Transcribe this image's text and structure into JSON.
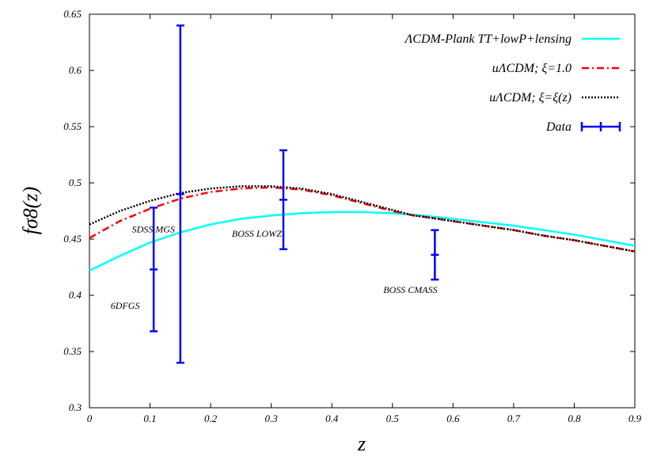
{
  "chart_data": {
    "type": "line",
    "xlabel": "z",
    "ylabel": "fσ8(z)",
    "xlim": [
      0,
      0.9
    ],
    "ylim": [
      0.3,
      0.65
    ],
    "x_ticks": [
      "0",
      "0.1",
      "0.2",
      "0.3",
      "0.4",
      "0.5",
      "0.6",
      "0.7",
      "0.8",
      "0.9"
    ],
    "y_ticks": [
      "0.3",
      "0.35",
      "0.4",
      "0.45",
      "0.5",
      "0.55",
      "0.6",
      "0.65"
    ],
    "grid": false,
    "legend_position": "top-right",
    "series": [
      {
        "name": "ΛCDM-Plank TT+lowP+lensing",
        "color": "#00ffff",
        "style": "solid",
        "x": [
          0,
          0.05,
          0.1,
          0.15,
          0.2,
          0.25,
          0.3,
          0.35,
          0.4,
          0.45,
          0.5,
          0.55,
          0.6,
          0.65,
          0.7,
          0.75,
          0.8,
          0.85,
          0.9
        ],
        "y": [
          0.422,
          0.435,
          0.447,
          0.456,
          0.463,
          0.468,
          0.471,
          0.473,
          0.474,
          0.474,
          0.473,
          0.471,
          0.468,
          0.465,
          0.462,
          0.458,
          0.454,
          0.449,
          0.444
        ]
      },
      {
        "name": "uΛCDM; ξ=1.0",
        "color": "#ff0000",
        "style": "dash-dot",
        "x": [
          0,
          0.05,
          0.1,
          0.15,
          0.2,
          0.25,
          0.3,
          0.35,
          0.4,
          0.45,
          0.5,
          0.535,
          0.55,
          0.6,
          0.65,
          0.7,
          0.75,
          0.8,
          0.85,
          0.9
        ],
        "y": [
          0.451,
          0.466,
          0.477,
          0.486,
          0.492,
          0.495,
          0.496,
          0.494,
          0.489,
          0.482,
          0.475,
          0.471,
          0.47,
          0.466,
          0.462,
          0.458,
          0.453,
          0.449,
          0.444,
          0.439
        ]
      },
      {
        "name": "uΛCDM; ξ=ξ(z)",
        "color": "#000000",
        "style": "dotted",
        "x": [
          0,
          0.05,
          0.1,
          0.15,
          0.2,
          0.25,
          0.3,
          0.35,
          0.4,
          0.45,
          0.5,
          0.535,
          0.55,
          0.6,
          0.65,
          0.7,
          0.75,
          0.8,
          0.85,
          0.9
        ],
        "y": [
          0.463,
          0.475,
          0.484,
          0.491,
          0.495,
          0.497,
          0.497,
          0.495,
          0.49,
          0.483,
          0.476,
          0.471,
          0.47,
          0.466,
          0.462,
          0.458,
          0.453,
          0.449,
          0.444,
          0.439
        ]
      }
    ],
    "data_points": {
      "name": "Data",
      "color": "#0000ff",
      "points": [
        {
          "x": 0.106,
          "y": 0.423,
          "yerr": 0.055
        },
        {
          "x": 0.15,
          "y": 0.49,
          "yerr": 0.15
        },
        {
          "x": 0.32,
          "y": 0.485,
          "yerr": 0.044
        },
        {
          "x": 0.57,
          "y": 0.436,
          "yerr": 0.022
        }
      ]
    },
    "annotations": [
      {
        "text": "6DFGS",
        "x": 0.035,
        "y": 0.388
      },
      {
        "text": "SDSS MGS",
        "x": 0.07,
        "y": 0.456
      },
      {
        "text": "BOSS LOWZ",
        "x": 0.235,
        "y": 0.452
      },
      {
        "text": "BOSS CMASS",
        "x": 0.485,
        "y": 0.402
      }
    ]
  }
}
